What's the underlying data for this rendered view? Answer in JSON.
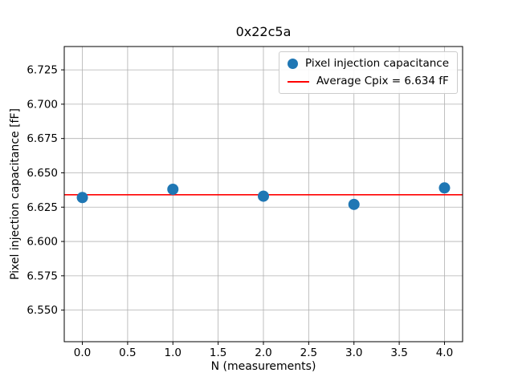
{
  "chart_data": {
    "type": "scatter",
    "title": "0x22c5a",
    "xlabel": "N (measurements)",
    "ylabel": "Pixel injection capacitance [fF]",
    "grid": true,
    "legend_position": "upper right",
    "xlim": [
      -0.2,
      4.2
    ],
    "ylim": [
      6.527,
      6.742
    ],
    "xticks": [
      0.0,
      0.5,
      1.0,
      1.5,
      2.0,
      2.5,
      3.0,
      3.5,
      4.0
    ],
    "xtick_labels": [
      "0.0",
      "0.5",
      "1.0",
      "1.5",
      "2.0",
      "2.5",
      "3.0",
      "3.5",
      "4.0"
    ],
    "yticks": [
      6.55,
      6.575,
      6.6,
      6.625,
      6.65,
      6.675,
      6.7,
      6.725
    ],
    "ytick_labels": [
      "6.550",
      "6.575",
      "6.600",
      "6.625",
      "6.650",
      "6.675",
      "6.700",
      "6.725"
    ],
    "series": [
      {
        "name": "Pixel injection capacitance",
        "type": "scatter",
        "color": "#1f77b4",
        "x": [
          0,
          1,
          2,
          3,
          4
        ],
        "y": [
          6.632,
          6.638,
          6.633,
          6.627,
          6.639
        ]
      },
      {
        "name": "Average Cpix = 6.634 fF",
        "type": "hline",
        "color": "#ff0000",
        "y": 6.634
      }
    ],
    "average_value": 6.634
  }
}
